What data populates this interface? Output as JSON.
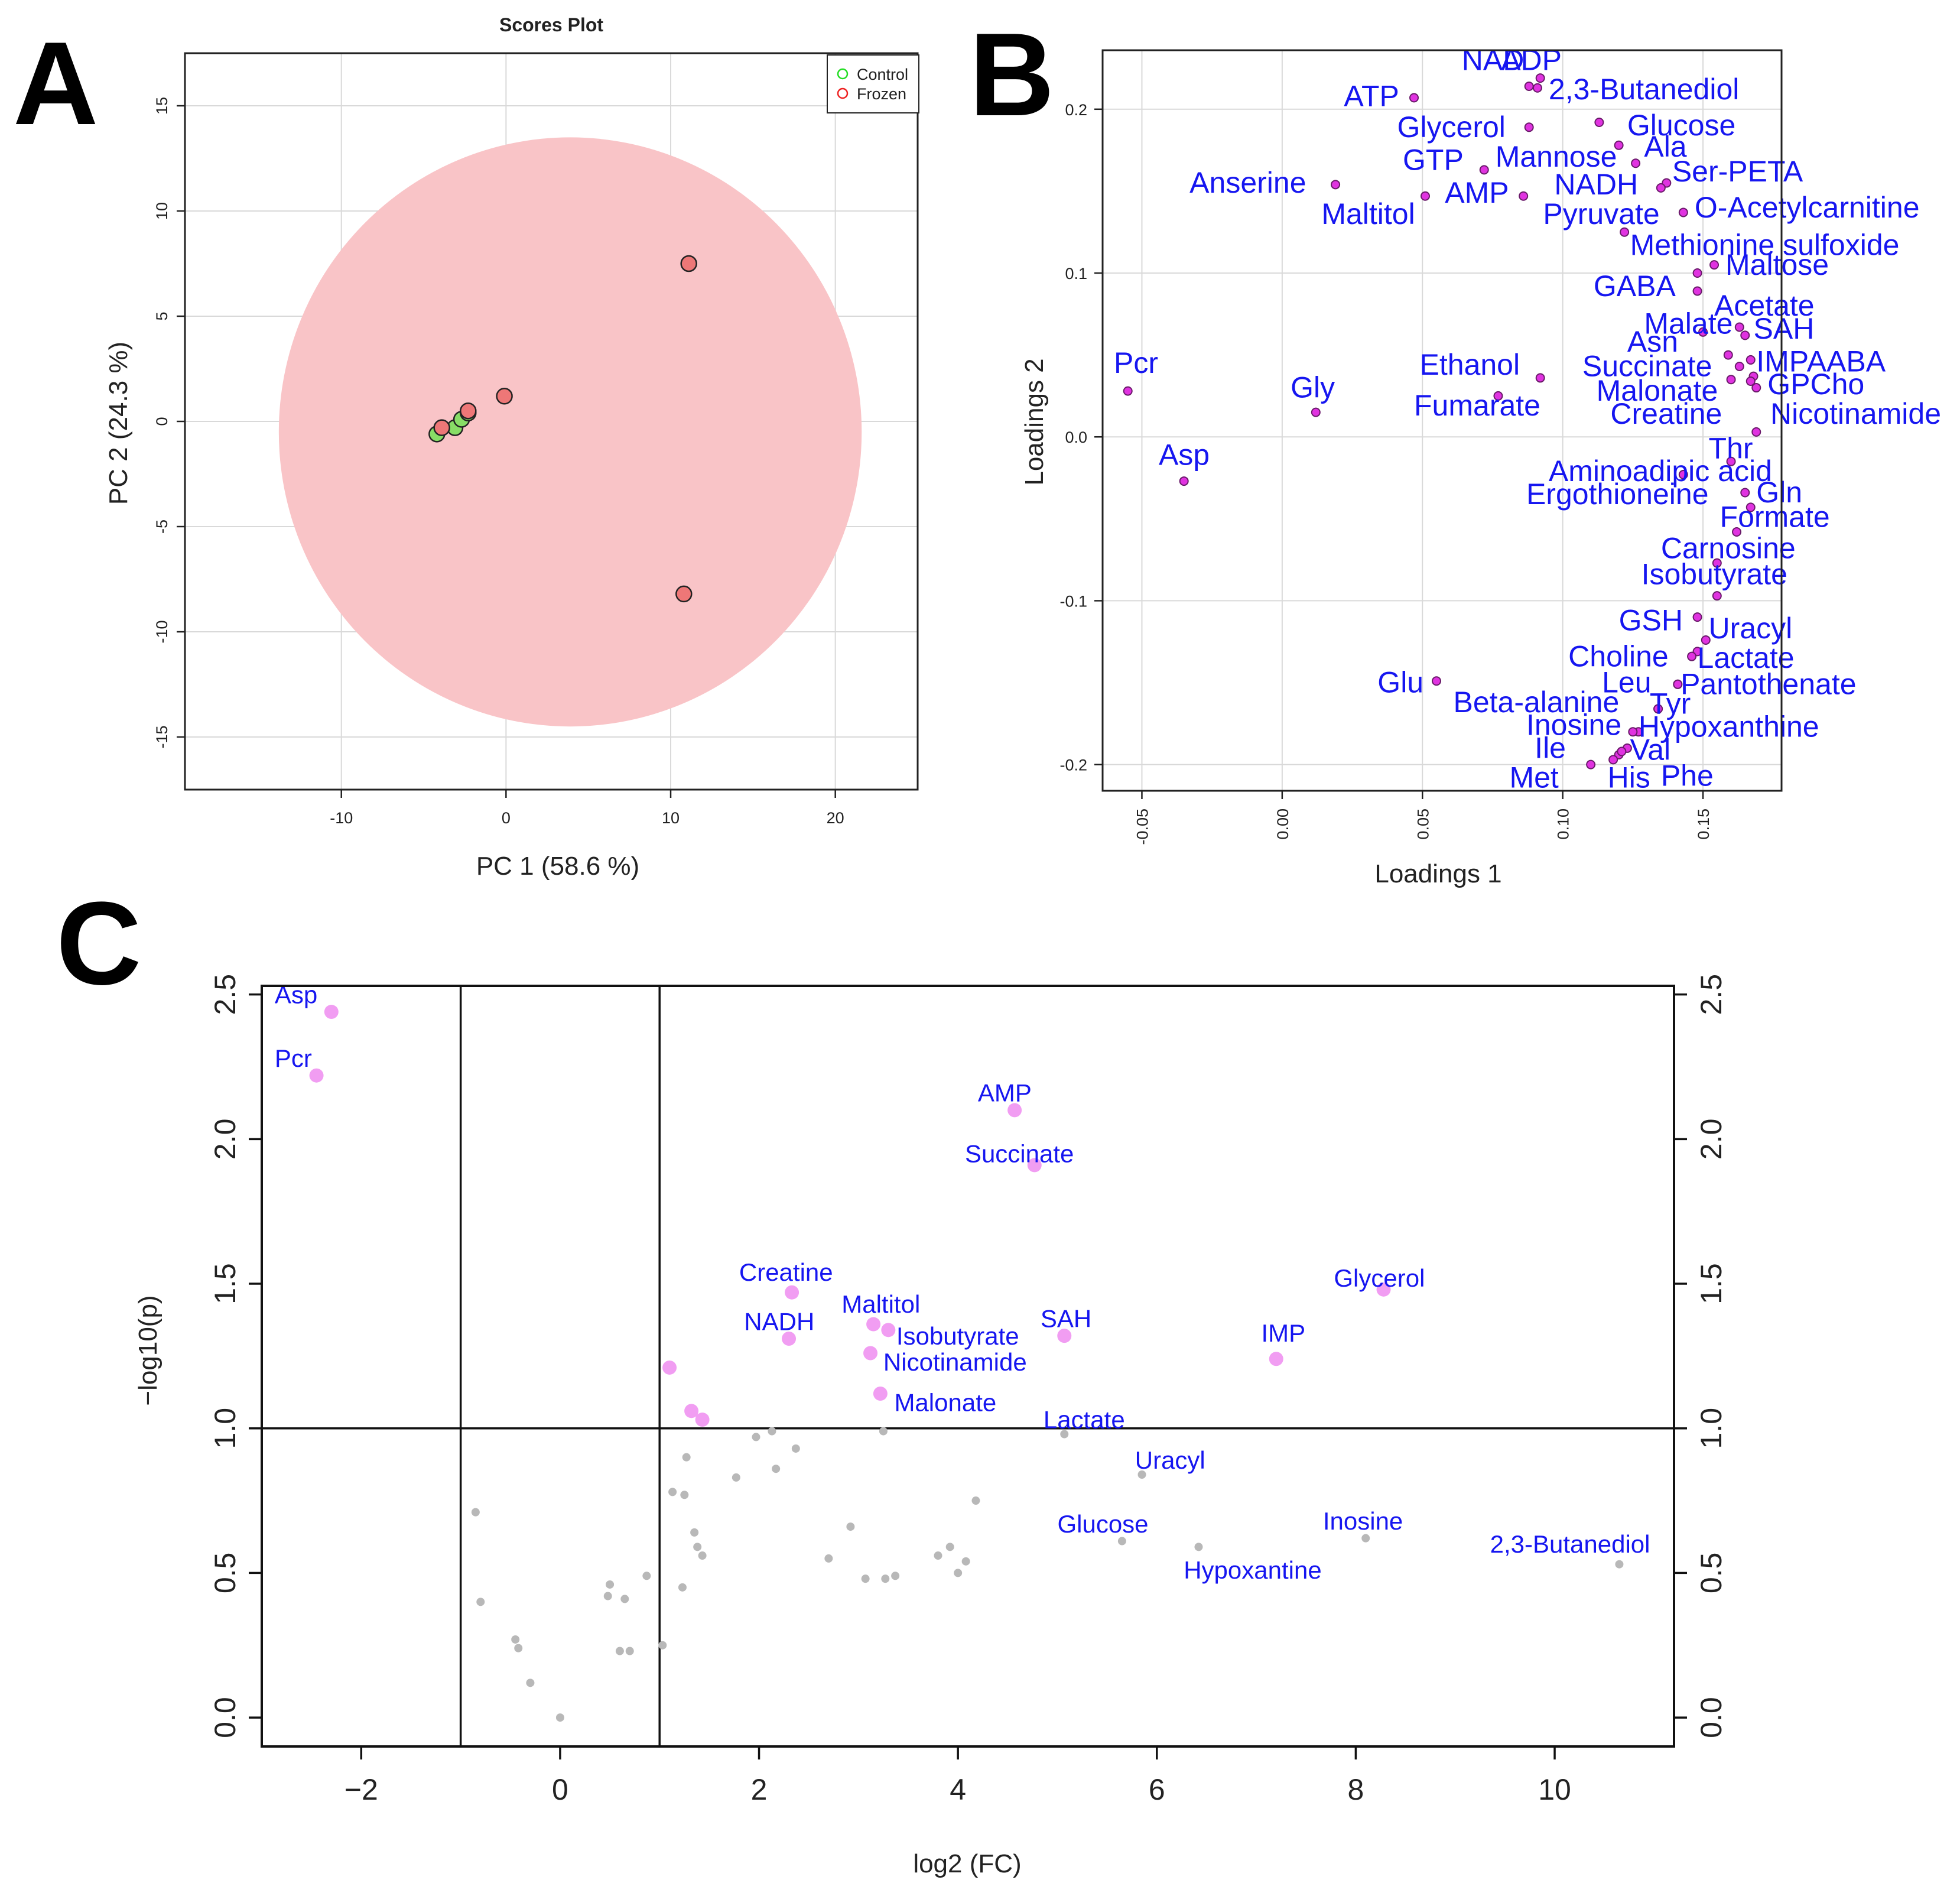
{
  "figure": {
    "panel_letters": [
      "A",
      "B",
      "C"
    ]
  },
  "colors": {
    "control": "#22dd22",
    "frozen": "#ee2222",
    "control_fill": "#88dd66",
    "frozen_fill": "#ee7777",
    "ellipse": "#f9c4c7",
    "loading_point": "#e033e0",
    "label_blue": "#1616f0",
    "sig_point": "#f19df2",
    "nonsig_point": "#b8b8b8",
    "grid": "#d9d9d9"
  },
  "chart_data": [
    {
      "panel": "A",
      "type": "scatter",
      "title": "Scores Plot",
      "xlabel": "PC 1 (58.6 %)",
      "ylabel": "PC 2 (24.3 %)",
      "xlim": [
        -19.5,
        25
      ],
      "ylim": [
        -17.5,
        17.5
      ],
      "xticks": [
        -10,
        0,
        10,
        20
      ],
      "yticks": [
        -15,
        -10,
        -5,
        0,
        5,
        10,
        15
      ],
      "grid": true,
      "legend": {
        "position": "top-right",
        "entries": [
          "Control",
          "Frozen"
        ]
      },
      "ellipse": {
        "group": "Frozen",
        "center": [
          3.9,
          -0.5
        ],
        "rx": 17.7,
        "ry": 14.0
      },
      "series": [
        {
          "name": "Control",
          "points": [
            [
              -4.2,
              -0.6
            ],
            [
              -3.1,
              -0.3
            ],
            [
              -2.7,
              0.1
            ],
            [
              -2.3,
              0.4
            ]
          ]
        },
        {
          "name": "Frozen",
          "points": [
            [
              11.1,
              7.5
            ],
            [
              -0.1,
              1.2
            ],
            [
              10.8,
              -8.2
            ],
            [
              -3.9,
              -0.3
            ],
            [
              -2.3,
              0.5
            ]
          ]
        }
      ]
    },
    {
      "panel": "B",
      "type": "scatter",
      "xlabel": "Loadings 1",
      "ylabel": "Loadings 2",
      "xlim": [
        -0.064,
        0.178
      ],
      "ylim": [
        -0.216,
        0.236
      ],
      "xticks": [
        -0.05,
        0.0,
        0.05,
        0.1,
        0.15
      ],
      "xtick_labels": [
        "-0.05",
        "0.00",
        "0.05",
        "0.10",
        "0.15"
      ],
      "yticks": [
        -0.2,
        -0.1,
        0.0,
        0.1,
        0.2
      ],
      "ytick_labels": [
        "-0.2",
        "-0.1",
        "0.0",
        "0.1",
        "0.2"
      ],
      "grid": true,
      "points": [
        {
          "name": "NAD",
          "x": 0.088,
          "y": 0.214
        },
        {
          "name": "ADP",
          "x": 0.092,
          "y": 0.219
        },
        {
          "name": "ATP",
          "x": 0.047,
          "y": 0.207
        },
        {
          "name": "2,3-Butanediol",
          "x": 0.091,
          "y": 0.213
        },
        {
          "name": "Glycerol",
          "x": 0.088,
          "y": 0.189
        },
        {
          "name": "Glucose",
          "x": 0.113,
          "y": 0.192
        },
        {
          "name": "GTP",
          "x": 0.072,
          "y": 0.163
        },
        {
          "name": "Mannose",
          "x": 0.12,
          "y": 0.178
        },
        {
          "name": "Ala",
          "x": 0.126,
          "y": 0.167
        },
        {
          "name": "Anserine",
          "x": 0.019,
          "y": 0.154
        },
        {
          "name": "Ser-PETA",
          "x": 0.137,
          "y": 0.155
        },
        {
          "name": "NADH",
          "x": 0.135,
          "y": 0.152
        },
        {
          "name": "AMP",
          "x": 0.086,
          "y": 0.147
        },
        {
          "name": "Maltitol",
          "x": 0.051,
          "y": 0.147
        },
        {
          "name": "O-Acetylcarnitine",
          "x": 0.143,
          "y": 0.137
        },
        {
          "name": "Pyruvate",
          "x": 0.122,
          "y": 0.125
        },
        {
          "name": "Methionine sulfoxide",
          "x": 0.154,
          "y": 0.105
        },
        {
          "name": "Maltose",
          "x": 0.148,
          "y": 0.1
        },
        {
          "name": "GABA",
          "x": 0.148,
          "y": 0.089
        },
        {
          "name": "Acetate",
          "x": 0.163,
          "y": 0.067
        },
        {
          "name": "Malate",
          "x": 0.15,
          "y": 0.064
        },
        {
          "name": "SAH",
          "x": 0.165,
          "y": 0.062
        },
        {
          "name": "Asn",
          "x": 0.159,
          "y": 0.05
        },
        {
          "name": "IMP",
          "x": 0.167,
          "y": 0.047
        },
        {
          "name": "AABA",
          "x": 0.168,
          "y": 0.037
        },
        {
          "name": "Ethanol",
          "x": 0.092,
          "y": 0.036
        },
        {
          "name": "Succinate",
          "x": 0.16,
          "y": 0.035
        },
        {
          "name": "GPCho",
          "x": 0.169,
          "y": 0.03
        },
        {
          "name": "Malonate",
          "x": 0.163,
          "y": 0.043
        },
        {
          "name": "Pcr",
          "x": -0.055,
          "y": 0.028
        },
        {
          "name": "Fumarate",
          "x": 0.077,
          "y": 0.025
        },
        {
          "name": "Gly",
          "x": 0.012,
          "y": 0.015
        },
        {
          "name": "Creatine",
          "x": 0.167,
          "y": 0.034
        },
        {
          "name": "Nicotinamide",
          "x": 0.169,
          "y": 0.003
        },
        {
          "name": "Thr",
          "x": 0.16,
          "y": -0.015
        },
        {
          "name": "Asp",
          "x": -0.035,
          "y": -0.027
        },
        {
          "name": "Aminoadipic acid",
          "x": 0.143,
          "y": -0.023
        },
        {
          "name": "Gln",
          "x": 0.165,
          "y": -0.034
        },
        {
          "name": "Ergothioneine",
          "x": 0.167,
          "y": -0.043
        },
        {
          "name": "Formate",
          "x": 0.162,
          "y": -0.058
        },
        {
          "name": "Carnosine",
          "x": 0.155,
          "y": -0.077
        },
        {
          "name": "Isobutyrate",
          "x": 0.155,
          "y": -0.097
        },
        {
          "name": "GSH",
          "x": 0.148,
          "y": -0.11
        },
        {
          "name": "Uracyl",
          "x": 0.151,
          "y": -0.124
        },
        {
          "name": "Choline",
          "x": 0.148,
          "y": -0.131
        },
        {
          "name": "Lactate",
          "x": 0.146,
          "y": -0.134
        },
        {
          "name": "Glu",
          "x": 0.055,
          "y": -0.149
        },
        {
          "name": "Leu",
          "x": 0.141,
          "y": -0.151
        },
        {
          "name": "Pantothenate",
          "x": 0.141,
          "y": -0.151
        },
        {
          "name": "Beta-alanine",
          "x": 0.134,
          "y": -0.166
        },
        {
          "name": "Tyr",
          "x": 0.134,
          "y": -0.166
        },
        {
          "name": "Inosine",
          "x": 0.127,
          "y": -0.18
        },
        {
          "name": "Hypoxanthine",
          "x": 0.125,
          "y": -0.18
        },
        {
          "name": "Ile",
          "x": 0.12,
          "y": -0.194
        },
        {
          "name": "Val",
          "x": 0.123,
          "y": -0.19
        },
        {
          "name": "Met",
          "x": 0.11,
          "y": -0.2
        },
        {
          "name": "His",
          "x": 0.118,
          "y": -0.197
        },
        {
          "name": "Phe",
          "x": 0.121,
          "y": -0.192
        }
      ],
      "text_labels": [
        {
          "text": "NAD",
          "x": 0.064,
          "y": 0.224
        },
        {
          "text": "ADP",
          "x": 0.078,
          "y": 0.224
        },
        {
          "text": "ATP",
          "x": 0.022,
          "y": 0.202
        },
        {
          "text": "2,3-Butanediol",
          "x": 0.095,
          "y": 0.206
        },
        {
          "text": "Glycerol",
          "x": 0.041,
          "y": 0.183
        },
        {
          "text": "Glucose",
          "x": 0.123,
          "y": 0.184
        },
        {
          "text": "GTP",
          "x": 0.043,
          "y": 0.163
        },
        {
          "text": "Mannose",
          "x": 0.076,
          "y": 0.165
        },
        {
          "text": "Ala",
          "x": 0.129,
          "y": 0.171
        },
        {
          "text": "Anserine",
          "x": -0.033,
          "y": 0.149
        },
        {
          "text": "Ser-PETA",
          "x": 0.139,
          "y": 0.156
        },
        {
          "text": "NADH",
          "x": 0.097,
          "y": 0.148
        },
        {
          "text": "AMP",
          "x": 0.058,
          "y": 0.143
        },
        {
          "text": "Maltitol",
          "x": 0.014,
          "y": 0.13
        },
        {
          "text": "O-Acetylcarnitine",
          "x": 0.147,
          "y": 0.134
        },
        {
          "text": "Pyruvate",
          "x": 0.093,
          "y": 0.13
        },
        {
          "text": "Methionine sulfoxide",
          "x": 0.124,
          "y": 0.111
        },
        {
          "text": "Maltose",
          "x": 0.158,
          "y": 0.099
        },
        {
          "text": "GABA",
          "x": 0.111,
          "y": 0.086
        },
        {
          "text": "Acetate",
          "x": 0.154,
          "y": 0.074
        },
        {
          "text": "Malate",
          "x": 0.129,
          "y": 0.063
        },
        {
          "text": "SAH",
          "x": 0.168,
          "y": 0.06
        },
        {
          "text": "Asn",
          "x": 0.123,
          "y": 0.052
        },
        {
          "text": "IMP",
          "x": 0.169,
          "y": 0.04
        },
        {
          "text": "AABA",
          "x": 0.187,
          "y": 0.04
        },
        {
          "text": "Ethanol",
          "x": 0.049,
          "y": 0.038
        },
        {
          "text": "Succinate",
          "x": 0.107,
          "y": 0.037
        },
        {
          "text": "GPCho",
          "x": 0.173,
          "y": 0.026
        },
        {
          "text": "Malonate",
          "x": 0.112,
          "y": 0.022
        },
        {
          "text": "Pcr",
          "x": -0.06,
          "y": 0.039
        },
        {
          "text": "Fumarate",
          "x": 0.047,
          "y": 0.013
        },
        {
          "text": "Gly",
          "x": 0.003,
          "y": 0.024
        },
        {
          "text": "Creatine",
          "x": 0.117,
          "y": 0.008
        },
        {
          "text": "Nicotinamide",
          "x": 0.174,
          "y": 0.008
        },
        {
          "text": "Thr",
          "x": 0.152,
          "y": -0.013
        },
        {
          "text": "Asp",
          "x": -0.044,
          "y": -0.017
        },
        {
          "text": "Aminoadipic acid",
          "x": 0.095,
          "y": -0.027
        },
        {
          "text": "Gln",
          "x": 0.169,
          "y": -0.04
        },
        {
          "text": "Ergothioneine",
          "x": 0.087,
          "y": -0.041
        },
        {
          "text": "Formate",
          "x": 0.156,
          "y": -0.055
        },
        {
          "text": "Carnosine",
          "x": 0.135,
          "y": -0.074
        },
        {
          "text": "Isobutyrate",
          "x": 0.128,
          "y": -0.09
        },
        {
          "text": "GSH",
          "x": 0.12,
          "y": -0.118
        },
        {
          "text": "Uracyl",
          "x": 0.152,
          "y": -0.123
        },
        {
          "text": "Choline",
          "x": 0.102,
          "y": -0.14
        },
        {
          "text": "Lactate",
          "x": 0.148,
          "y": -0.141
        },
        {
          "text": "Glu",
          "x": 0.034,
          "y": -0.156
        },
        {
          "text": "Leu",
          "x": 0.114,
          "y": -0.156
        },
        {
          "text": "Pantothenate",
          "x": 0.142,
          "y": -0.157
        },
        {
          "text": "Beta-alanine",
          "x": 0.061,
          "y": -0.168
        },
        {
          "text": "Tyr",
          "x": 0.131,
          "y": -0.169
        },
        {
          "text": "Inosine",
          "x": 0.087,
          "y": -0.182
        },
        {
          "text": "Hypoxanthine",
          "x": 0.127,
          "y": -0.183
        },
        {
          "text": "Ile",
          "x": 0.09,
          "y": -0.196
        },
        {
          "text": "Val",
          "x": 0.124,
          "y": -0.197
        },
        {
          "text": "Met",
          "x": 0.081,
          "y": -0.214
        },
        {
          "text": "His",
          "x": 0.116,
          "y": -0.214
        },
        {
          "text": "Phe",
          "x": 0.135,
          "y": -0.213
        }
      ]
    },
    {
      "panel": "C",
      "type": "scatter",
      "xlabel": "log2 (FC)",
      "ylabel": "−log10(p)",
      "xlim": [
        -3.0,
        11.2
      ],
      "ylim": [
        -0.1,
        2.53
      ],
      "xticks": [
        -2,
        0,
        2,
        4,
        6,
        8,
        10
      ],
      "xtick_labels": [
        "−2",
        "0",
        "2",
        "4",
        "6",
        "8",
        "10"
      ],
      "yticks": [
        0.0,
        0.5,
        1.0,
        1.5,
        2.0,
        2.5
      ],
      "ytick_labels": [
        "0.0",
        "0.5",
        "1.0",
        "1.5",
        "2.0",
        "2.5"
      ],
      "thresholds": {
        "fc_lines": [
          -1,
          1
        ],
        "p_line": 1.0
      },
      "significant": [
        {
          "x": -2.3,
          "y": 2.44
        },
        {
          "x": -2.45,
          "y": 2.22
        },
        {
          "x": 4.57,
          "y": 2.1
        },
        {
          "x": 4.77,
          "y": 1.91
        },
        {
          "x": 2.33,
          "y": 1.47
        },
        {
          "x": 8.28,
          "y": 1.48
        },
        {
          "x": 3.15,
          "y": 1.36
        },
        {
          "x": 3.3,
          "y": 1.34
        },
        {
          "x": 2.3,
          "y": 1.31
        },
        {
          "x": 5.07,
          "y": 1.32
        },
        {
          "x": 3.12,
          "y": 1.26
        },
        {
          "x": 7.2,
          "y": 1.24
        },
        {
          "x": 1.1,
          "y": 1.21
        },
        {
          "x": 3.22,
          "y": 1.12
        },
        {
          "x": 1.32,
          "y": 1.06
        },
        {
          "x": 1.43,
          "y": 1.03
        }
      ],
      "nonsignificant": [
        {
          "x": 3.25,
          "y": 0.99
        },
        {
          "x": 2.13,
          "y": 0.99
        },
        {
          "x": 1.97,
          "y": 0.97
        },
        {
          "x": 5.07,
          "y": 0.98
        },
        {
          "x": 2.37,
          "y": 0.93
        },
        {
          "x": 1.27,
          "y": 0.9
        },
        {
          "x": 2.17,
          "y": 0.86
        },
        {
          "x": 5.85,
          "y": 0.84
        },
        {
          "x": 1.77,
          "y": 0.83
        },
        {
          "x": 1.13,
          "y": 0.78
        },
        {
          "x": 1.25,
          "y": 0.77
        },
        {
          "x": 4.18,
          "y": 0.75
        },
        {
          "x": -0.85,
          "y": 0.71
        },
        {
          "x": 2.92,
          "y": 0.66
        },
        {
          "x": 1.35,
          "y": 0.64
        },
        {
          "x": 5.65,
          "y": 0.61
        },
        {
          "x": 8.1,
          "y": 0.62
        },
        {
          "x": 1.38,
          "y": 0.59
        },
        {
          "x": 3.92,
          "y": 0.59
        },
        {
          "x": 6.42,
          "y": 0.59
        },
        {
          "x": 3.8,
          "y": 0.56
        },
        {
          "x": 1.43,
          "y": 0.56
        },
        {
          "x": 2.7,
          "y": 0.55
        },
        {
          "x": 4.08,
          "y": 0.54
        },
        {
          "x": 10.65,
          "y": 0.53
        },
        {
          "x": 0.87,
          "y": 0.49
        },
        {
          "x": 4.0,
          "y": 0.5
        },
        {
          "x": 3.37,
          "y": 0.49
        },
        {
          "x": 3.07,
          "y": 0.48
        },
        {
          "x": 3.27,
          "y": 0.48
        },
        {
          "x": 0.5,
          "y": 0.46
        },
        {
          "x": 1.23,
          "y": 0.45
        },
        {
          "x": 0.48,
          "y": 0.42
        },
        {
          "x": 0.65,
          "y": 0.41
        },
        {
          "x": -0.8,
          "y": 0.4
        },
        {
          "x": -0.45,
          "y": 0.27
        },
        {
          "x": -0.42,
          "y": 0.24
        },
        {
          "x": 1.03,
          "y": 0.25
        },
        {
          "x": 0.6,
          "y": 0.23
        },
        {
          "x": 0.7,
          "y": 0.23
        },
        {
          "x": -0.3,
          "y": 0.12
        },
        {
          "x": 0.0,
          "y": 0.0
        }
      ],
      "text_labels": [
        {
          "text": "Asp",
          "x": -2.87,
          "y": 2.47
        },
        {
          "text": "Pcr",
          "x": -2.87,
          "y": 2.25
        },
        {
          "text": "AMP",
          "x": 4.2,
          "y": 2.13
        },
        {
          "text": "Succinate",
          "x": 4.07,
          "y": 1.92
        },
        {
          "text": "Creatine",
          "x": 1.8,
          "y": 1.51
        },
        {
          "text": "Glycerol",
          "x": 7.78,
          "y": 1.49
        },
        {
          "text": "Maltitol",
          "x": 2.83,
          "y": 1.4
        },
        {
          "text": "NADH",
          "x": 1.85,
          "y": 1.34
        },
        {
          "text": "Isobutyrate",
          "x": 3.38,
          "y": 1.29
        },
        {
          "text": "SAH",
          "x": 4.83,
          "y": 1.35
        },
        {
          "text": "IMP",
          "x": 7.05,
          "y": 1.3
        },
        {
          "text": "Nicotinamide",
          "x": 3.25,
          "y": 1.2
        },
        {
          "text": "Malonate",
          "x": 3.36,
          "y": 1.06
        },
        {
          "text": "Lactate",
          "x": 4.86,
          "y": 1.0
        },
        {
          "text": "Uracyl",
          "x": 5.78,
          "y": 0.86
        },
        {
          "text": "Glucose",
          "x": 5.0,
          "y": 0.64
        },
        {
          "text": "Inosine",
          "x": 7.67,
          "y": 0.65
        },
        {
          "text": "2,3-Butanediol",
          "x": 9.35,
          "y": 0.57
        },
        {
          "text": "Hypoxantine",
          "x": 6.27,
          "y": 0.48
        }
      ]
    }
  ]
}
